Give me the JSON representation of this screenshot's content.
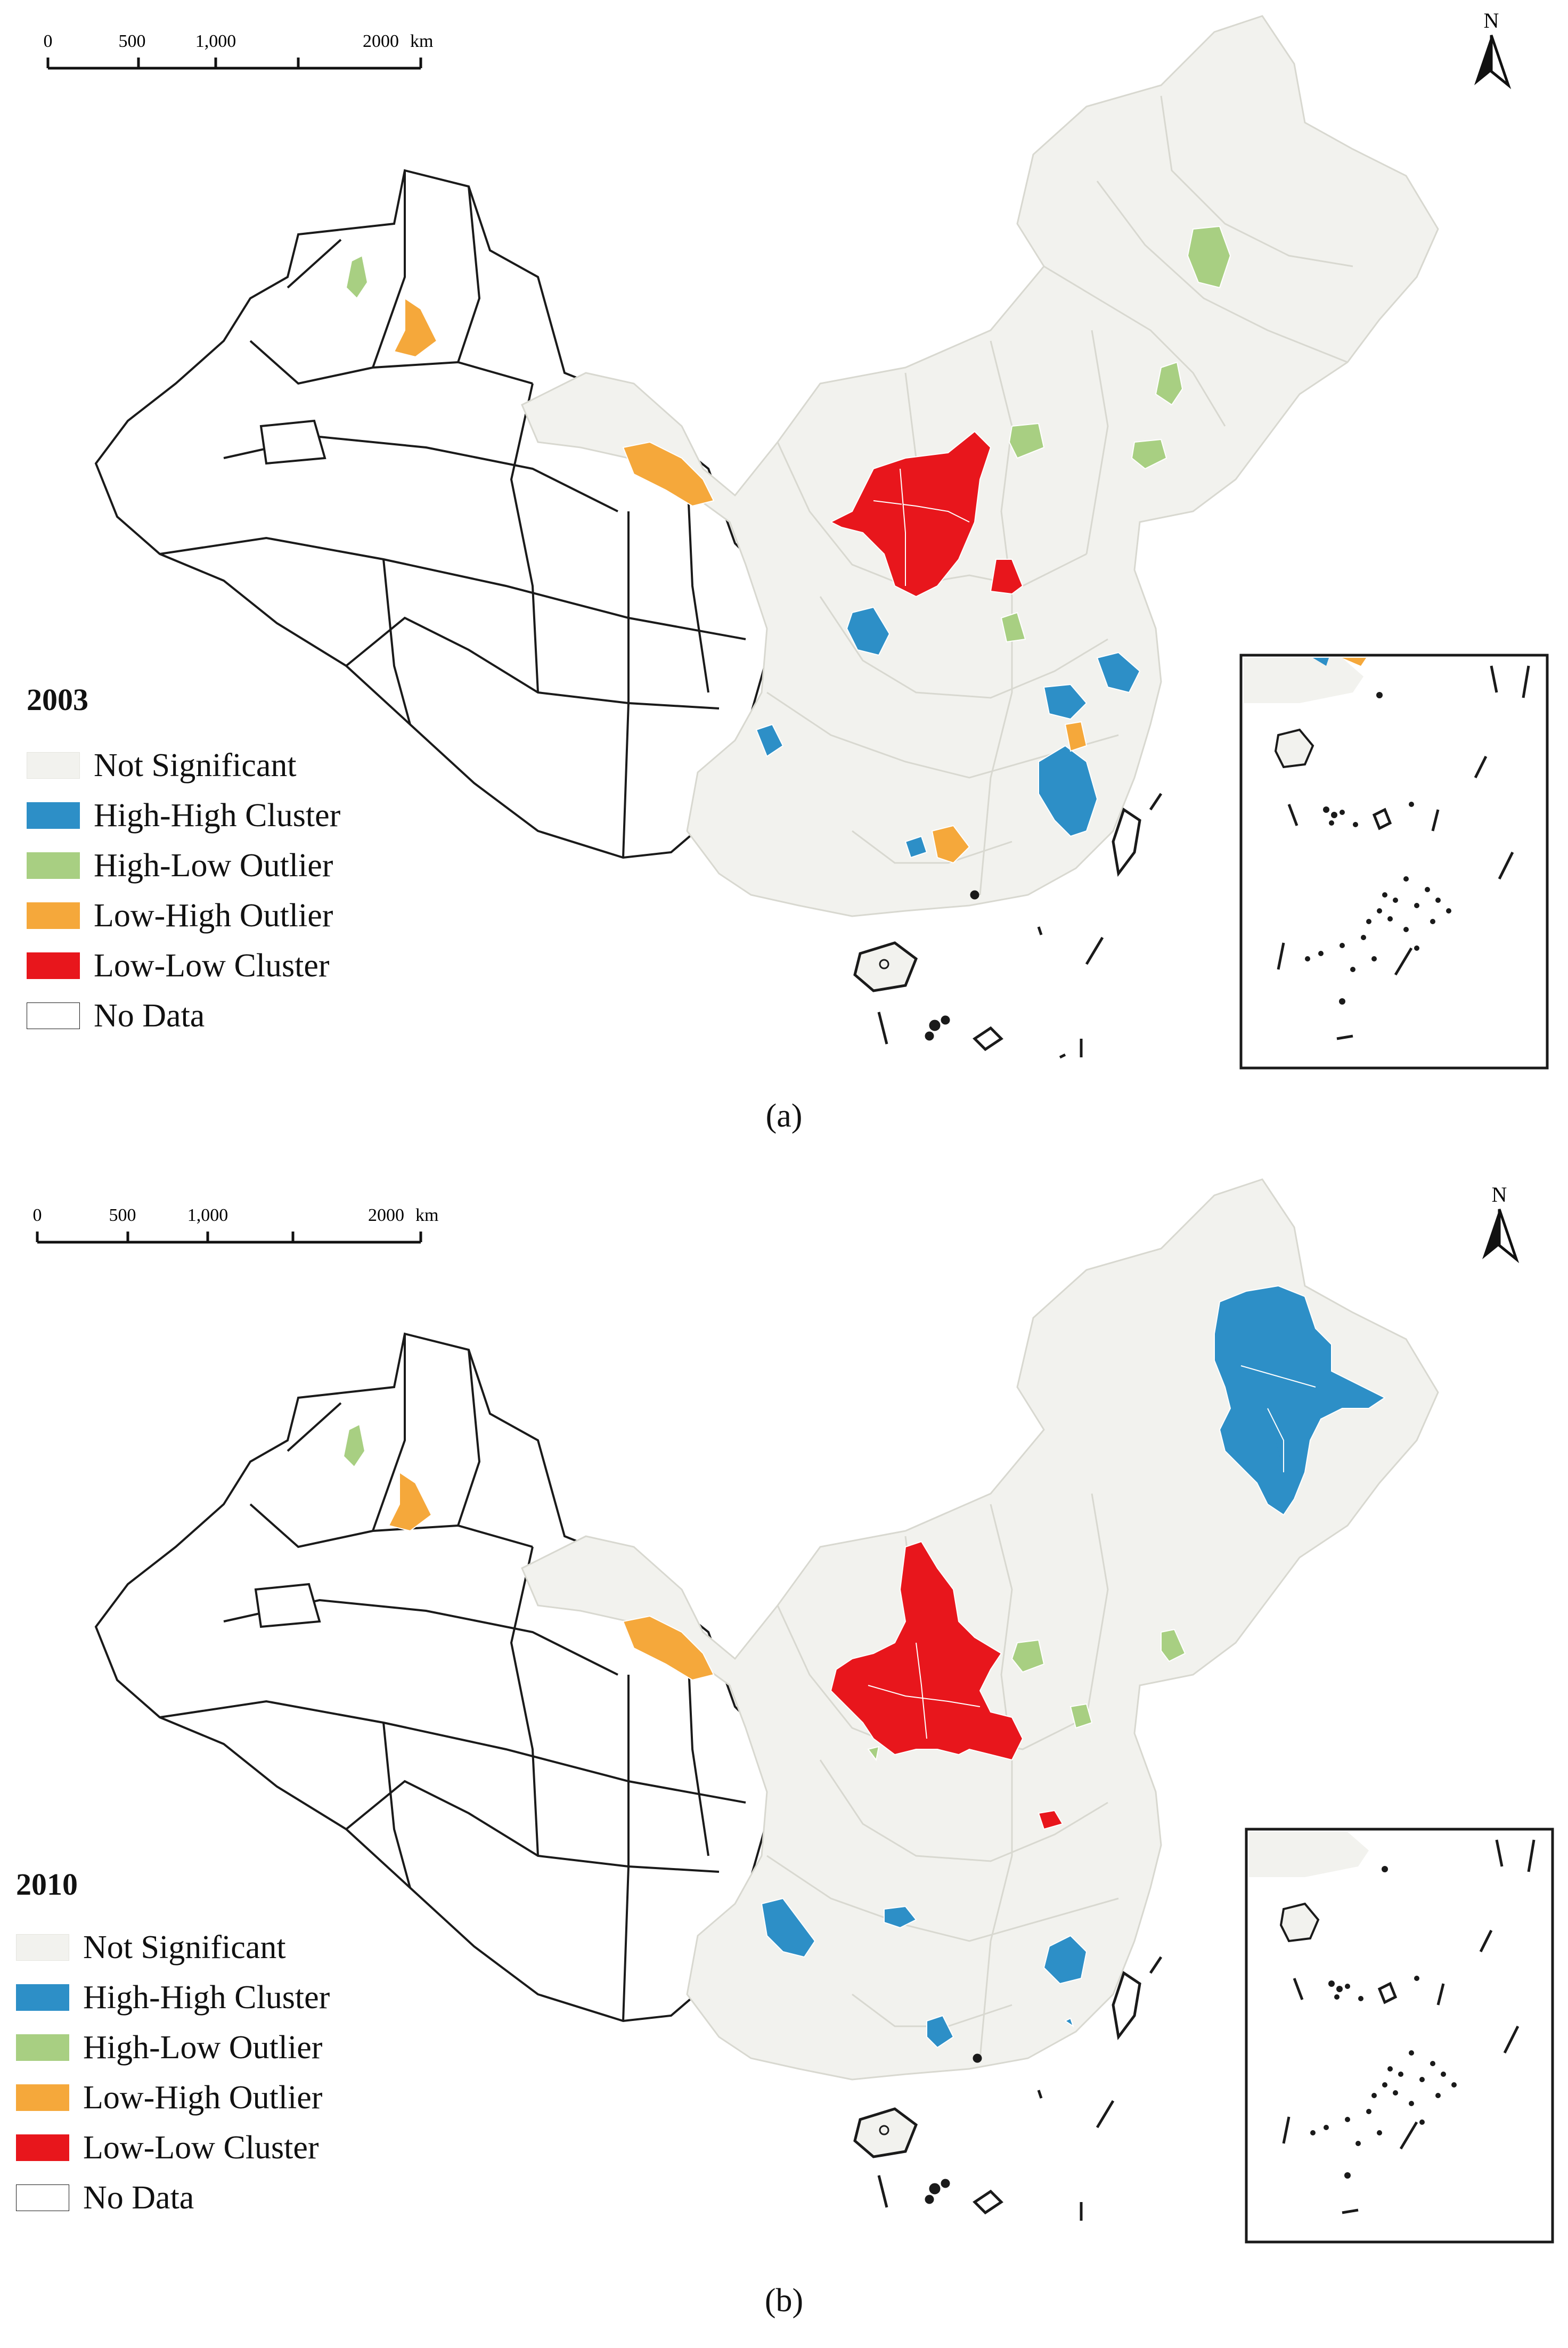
{
  "colors": {
    "not_significant": "#f2f2ee",
    "high_high": "#2d8fc7",
    "high_low": "#a8cf82",
    "low_high": "#f5a83b",
    "low_low": "#e8161c",
    "no_data": "#ffffff",
    "outline": "#1a1a1a"
  },
  "maps": [
    {
      "year": "2003",
      "caption": "(a)",
      "scale_bar": {
        "ticks": [
          "0",
          "500",
          "1,000",
          "2000"
        ],
        "unit": "km"
      },
      "north_label": "N",
      "legend": [
        {
          "label": "Not Significant",
          "color_key": "not_significant"
        },
        {
          "label": "High-High Cluster",
          "color_key": "high_high"
        },
        {
          "label": "High-Low Outlier",
          "color_key": "high_low"
        },
        {
          "label": "Low-High Outlier",
          "color_key": "low_high"
        },
        {
          "label": "Low-Low Cluster",
          "color_key": "low_low"
        },
        {
          "label": "No Data",
          "color_key": "no_data"
        }
      ]
    },
    {
      "year": "2010",
      "caption": "(b)",
      "scale_bar": {
        "ticks": [
          "0",
          "500",
          "1,000",
          "2000"
        ],
        "unit": "km"
      },
      "north_label": "N",
      "legend": [
        {
          "label": "Not Significant",
          "color_key": "not_significant"
        },
        {
          "label": "High-High Cluster",
          "color_key": "high_high"
        },
        {
          "label": "High-Low Outlier",
          "color_key": "high_low"
        },
        {
          "label": "Low-High Outlier",
          "color_key": "low_high"
        },
        {
          "label": "Low-Low Cluster",
          "color_key": "low_low"
        },
        {
          "label": "No Data",
          "color_key": "no_data"
        }
      ]
    }
  ]
}
